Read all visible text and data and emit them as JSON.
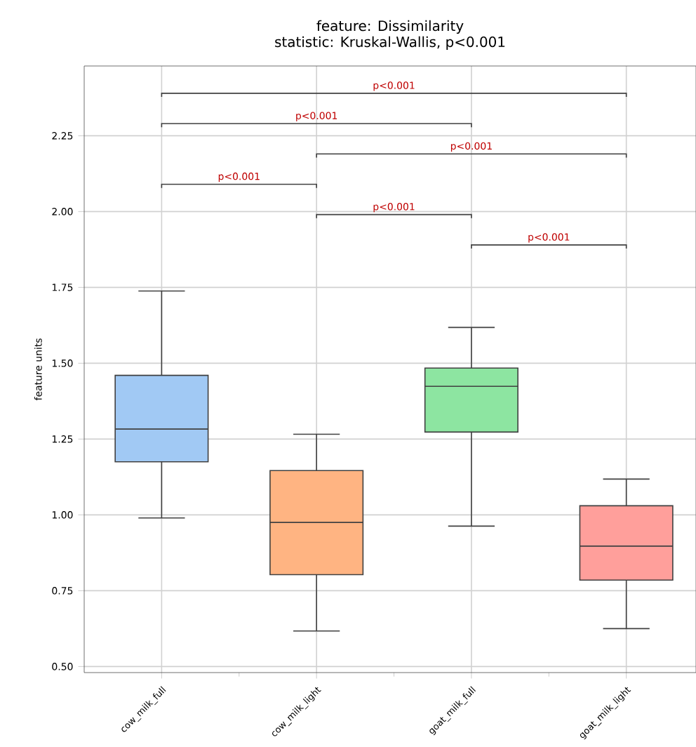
{
  "chart_data": {
    "type": "box",
    "title": "feature: Dissimilarity",
    "subtitle": "statistic: Kruskal-Wallis, p<0.001",
    "ylabel": "feature units",
    "categories": [
      "cow_milk_full",
      "cow_milk_light",
      "goat_milk_full",
      "goat_milk_light"
    ],
    "colors": [
      "#a1c9f4",
      "#ffb482",
      "#8de5a1",
      "#ff9f9b"
    ],
    "boxes": [
      {
        "low": 0.99,
        "q1": 1.175,
        "median": 1.283,
        "q3": 1.46,
        "high": 1.738
      },
      {
        "low": 0.617,
        "q1": 0.803,
        "median": 0.975,
        "q3": 1.146,
        "high": 1.266
      },
      {
        "low": 0.963,
        "q1": 1.273,
        "median": 1.424,
        "q3": 1.484,
        "high": 1.618
      },
      {
        "low": 0.625,
        "q1": 0.785,
        "median": 0.897,
        "q3": 1.03,
        "high": 1.118
      }
    ],
    "ylim": [
      0.48,
      2.48
    ],
    "yticks": [
      {
        "value": 0.5,
        "label": "0.50"
      },
      {
        "value": 0.75,
        "label": "0.75"
      },
      {
        "value": 1.0,
        "label": "1.00"
      },
      {
        "value": 1.25,
        "label": "1.25"
      },
      {
        "value": 1.5,
        "label": "1.50"
      },
      {
        "value": 1.75,
        "label": "1.75"
      },
      {
        "value": 2.0,
        "label": "2.00"
      },
      {
        "value": 2.25,
        "label": "2.25"
      }
    ],
    "grid": true,
    "annotations": [
      "p<0.001",
      "p<0.001",
      "p<0.001",
      "p<0.001",
      "p<0.001",
      "p<0.001"
    ]
  }
}
